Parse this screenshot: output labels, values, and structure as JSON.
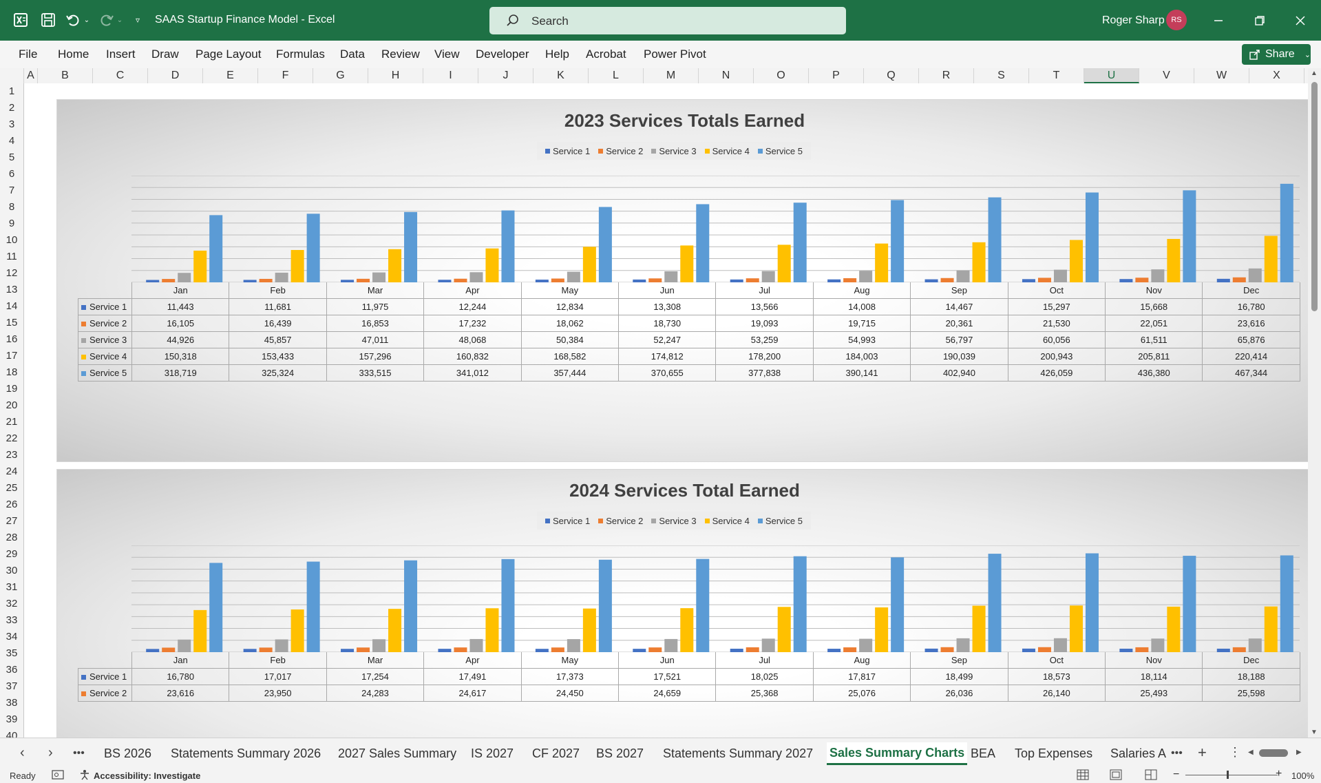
{
  "titlebar": {
    "doc_title": "SAAS Startup Finance Model  -  Excel",
    "search_placeholder": "Search",
    "user_name": "Roger Sharp",
    "user_initials": "RS"
  },
  "ribbon": {
    "tabs": [
      "File",
      "Home",
      "Insert",
      "Draw",
      "Page Layout",
      "Formulas",
      "Data",
      "Review",
      "View",
      "Developer",
      "Help",
      "Acrobat",
      "Power Pivot"
    ],
    "share_label": "Share"
  },
  "grid": {
    "columns": [
      "A",
      "B",
      "C",
      "D",
      "E",
      "F",
      "G",
      "H",
      "I",
      "J",
      "K",
      "L",
      "M",
      "N",
      "O",
      "P",
      "Q",
      "R",
      "S",
      "T",
      "U",
      "V",
      "W",
      "X"
    ],
    "selected_column": "U",
    "rows": [
      "1",
      "2",
      "3",
      "4",
      "5",
      "6",
      "7",
      "8",
      "9",
      "10",
      "11",
      "12",
      "13",
      "14",
      "15",
      "16",
      "17",
      "18",
      "19",
      "20",
      "21",
      "22",
      "23",
      "24",
      "25",
      "26",
      "27",
      "28",
      "29",
      "30",
      "31",
      "32",
      "33",
      "34",
      "35",
      "36",
      "37",
      "38",
      "39",
      "40"
    ]
  },
  "colors": {
    "service1": "#4472c4",
    "service2": "#ed7d31",
    "service3": "#a5a5a5",
    "service4": "#ffc000",
    "service5": "#5b9bd5",
    "excel_green": "#1e7145"
  },
  "chart_data": [
    {
      "type": "bar",
      "title": "2023 Services Totals Earned",
      "categories": [
        "Jan",
        "Feb",
        "Mar",
        "Apr",
        "May",
        "Jun",
        "Jul",
        "Aug",
        "Sep",
        "Oct",
        "Nov",
        "Dec"
      ],
      "legend_position": "top",
      "grid": true,
      "series": [
        {
          "name": "Service 1",
          "values": [
            11443,
            11681,
            11975,
            12244,
            12834,
            13308,
            13566,
            14008,
            14467,
            15297,
            15668,
            16780
          ],
          "display": [
            "11,443",
            "11,681",
            "11,975",
            "12,244",
            "12,834",
            "13,308",
            "13,566",
            "14,008",
            "14,467",
            "15,297",
            "15,668",
            "16,780"
          ]
        },
        {
          "name": "Service 2",
          "values": [
            16105,
            16439,
            16853,
            17232,
            18062,
            18730,
            19093,
            19715,
            20361,
            21530,
            22051,
            23616
          ],
          "display": [
            "16,105",
            "16,439",
            "16,853",
            "17,232",
            "18,062",
            "18,730",
            "19,093",
            "19,715",
            "20,361",
            "21,530",
            "22,051",
            "23,616"
          ]
        },
        {
          "name": "Service 3",
          "values": [
            44926,
            45857,
            47011,
            48068,
            50384,
            52247,
            53259,
            54993,
            56797,
            60056,
            61511,
            65876
          ],
          "display": [
            "44,926",
            "45,857",
            "47,011",
            "48,068",
            "50,384",
            "52,247",
            "53,259",
            "54,993",
            "56,797",
            "60,056",
            "61,511",
            "65,876"
          ]
        },
        {
          "name": "Service 4",
          "values": [
            150318,
            153433,
            157296,
            160832,
            168582,
            174812,
            178200,
            184003,
            190039,
            200943,
            205811,
            220414
          ],
          "display": [
            "150,318",
            "153,433",
            "157,296",
            "160,832",
            "168,582",
            "174,812",
            "178,200",
            "184,003",
            "190,039",
            "200,943",
            "205,811",
            "220,414"
          ]
        },
        {
          "name": "Service 5",
          "values": [
            318719,
            325324,
            333515,
            341012,
            357444,
            370655,
            377838,
            390141,
            402940,
            426059,
            436380,
            467344
          ],
          "display": [
            "318,719",
            "325,324",
            "333,515",
            "341,012",
            "357,444",
            "370,655",
            "377,838",
            "390,141",
            "402,940",
            "426,059",
            "436,380",
            "467,344"
          ]
        }
      ]
    },
    {
      "type": "bar",
      "title": "2024 Services Total Earned",
      "categories": [
        "Jan",
        "Feb",
        "Mar",
        "Apr",
        "May",
        "Jun",
        "Jul",
        "Aug",
        "Sep",
        "Oct",
        "Nov",
        "Dec"
      ],
      "legend_position": "top",
      "grid": true,
      "series": [
        {
          "name": "Service 1",
          "values": [
            16780,
            17017,
            17254,
            17491,
            17373,
            17521,
            18025,
            17817,
            18499,
            18573,
            18114,
            18188
          ],
          "display": [
            "16,780",
            "17,017",
            "17,254",
            "17,491",
            "17,373",
            "17,521",
            "18,025",
            "17,817",
            "18,499",
            "18,573",
            "18,114",
            "18,188"
          ]
        },
        {
          "name": "Service 2",
          "values": [
            23616,
            23950,
            24283,
            24617,
            24450,
            24659,
            25368,
            25076,
            26036,
            26140,
            25493,
            25598
          ],
          "display": [
            "23,616",
            "23,950",
            "24,283",
            "24,617",
            "24,450",
            "24,659",
            "25,368",
            "25,076",
            "26,036",
            "26,140",
            "25,493",
            "25,598"
          ]
        },
        {
          "name": "Service 3",
          "values": [
            65876,
            66800,
            67700,
            68700,
            68200,
            68800,
            70800,
            70000,
            72600,
            72900,
            71100,
            71400
          ]
        },
        {
          "name": "Service 4",
          "values": [
            220414,
            223500,
            226600,
            229800,
            228400,
            230300,
            236900,
            234200,
            243200,
            244100,
            238100,
            239100
          ]
        },
        {
          "name": "Service 5",
          "values": [
            467344,
            474000,
            480600,
            487300,
            484000,
            488100,
            502100,
            496300,
            515300,
            517400,
            504500,
            506600
          ]
        }
      ]
    }
  ],
  "sheet_tabs": {
    "tabs": [
      "BS 2026",
      "Statements Summary 2026",
      "2027 Sales Summary",
      "IS 2027",
      "CF 2027",
      "BS 2027",
      "Statements Summary 2027",
      "Sales Summary Charts",
      "BEA",
      "Top Expenses",
      "Salaries A"
    ],
    "active": "Sales Summary Charts"
  },
  "status": {
    "ready": "Ready",
    "accessibility": "Accessibility: Investigate",
    "zoom": "100%"
  }
}
